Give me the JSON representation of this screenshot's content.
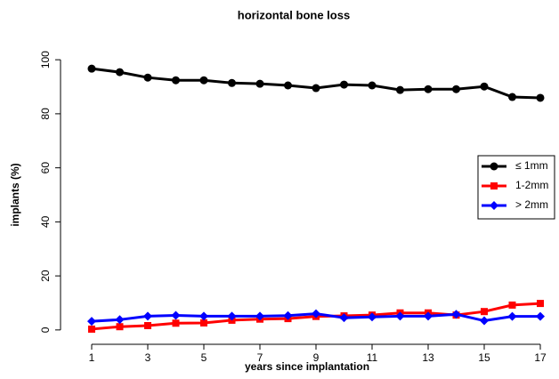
{
  "chart_data": {
    "type": "line",
    "title": "horizontal bone loss",
    "x_label": "years since implantation",
    "y_label": "implants (%)",
    "x": [
      1,
      2,
      3,
      4,
      5,
      6,
      7,
      8,
      9,
      10,
      11,
      12,
      13,
      14,
      15,
      16,
      17
    ],
    "series": [
      {
        "name": "≤ 1mm",
        "color": "#000000",
        "marker": "circle",
        "values": [
          96.7,
          95.4,
          93.4,
          92.4,
          92.4,
          91.4,
          91.1,
          90.5,
          89.5,
          90.8,
          90.5,
          88.8,
          89.1,
          89.1,
          90.1,
          86.2,
          85.9
        ]
      },
      {
        "name": "1-2mm",
        "color": "#ff0000",
        "marker": "square",
        "values": [
          0.3,
          1.2,
          1.6,
          2.5,
          2.6,
          3.6,
          4.0,
          4.2,
          5.0,
          5.2,
          5.5,
          6.3,
          6.3,
          5.5,
          6.8,
          9.2,
          9.8
        ]
      },
      {
        "name": "> 2mm",
        "color": "#0000ff",
        "marker": "diamond",
        "values": [
          3.2,
          3.8,
          5.1,
          5.4,
          5.1,
          5.1,
          5.1,
          5.3,
          6.0,
          4.5,
          4.8,
          5.1,
          5.1,
          5.8,
          3.4,
          5.0,
          5.0
        ]
      }
    ],
    "xlim": [
      0.4,
      17.6
    ],
    "ylim": [
      -4,
      104
    ],
    "xticks": [
      1,
      3,
      5,
      7,
      9,
      11,
      13,
      15,
      17
    ],
    "yticks": [
      0,
      20,
      40,
      60,
      80,
      100
    ],
    "legend_position": "right"
  }
}
